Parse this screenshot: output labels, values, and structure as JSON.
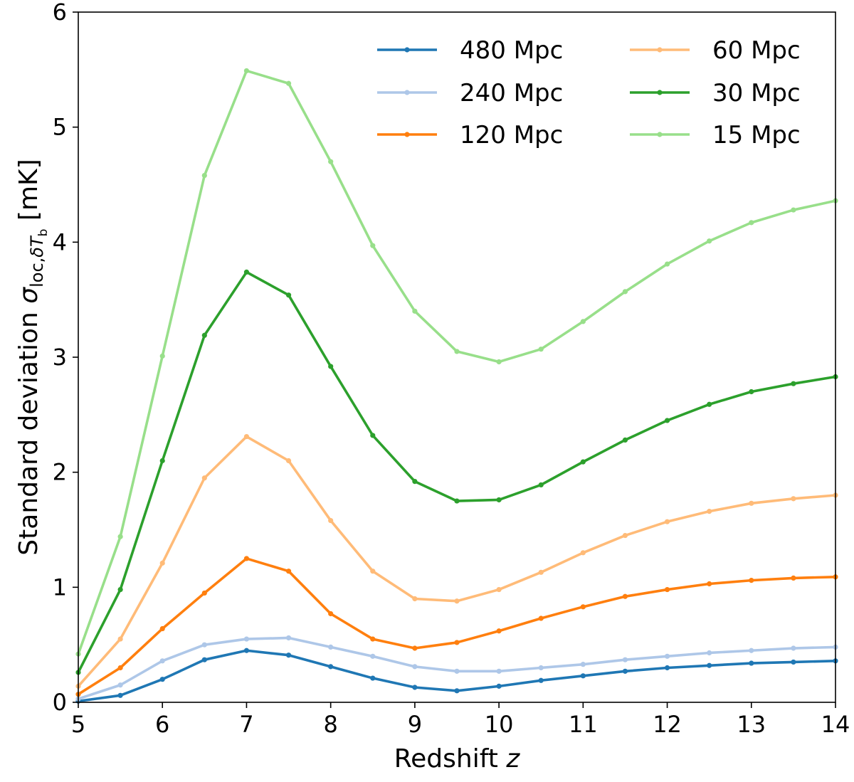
{
  "chart_data": {
    "type": "line",
    "title": "",
    "xlabel": "Redshift z",
    "ylabel": "Standard deviation σ_{loc,δT_b} [mK]",
    "ylabel_parts": {
      "prefix": "Standard deviation ",
      "sigma": "σ",
      "subscript_loc": "loc,",
      "subscript_delta": "δ",
      "subscript_T": "T",
      "subscript_b": "b",
      "suffix": " [mK]"
    },
    "xlabel_parts": {
      "prefix": "Redshift ",
      "var": "z"
    },
    "xlim": [
      5,
      14
    ],
    "ylim": [
      0,
      6
    ],
    "xticks": [
      "5",
      "6",
      "7",
      "8",
      "9",
      "10",
      "11",
      "12",
      "13",
      "14"
    ],
    "yticks": [
      "0",
      "1",
      "2",
      "3",
      "4",
      "5",
      "6"
    ],
    "grid": false,
    "legend_position": "top-right",
    "x": [
      5,
      5.5,
      6,
      6.5,
      7,
      7.5,
      8,
      8.5,
      9,
      9.5,
      10,
      10.5,
      11,
      11.5,
      12,
      12.5,
      13,
      13.5,
      14
    ],
    "series": [
      {
        "name": "480 Mpc",
        "color": "#1f77b4",
        "values": [
          0.01,
          0.06,
          0.2,
          0.37,
          0.45,
          0.41,
          0.31,
          0.21,
          0.13,
          0.1,
          0.14,
          0.19,
          0.23,
          0.27,
          0.3,
          0.32,
          0.34,
          0.35,
          0.36
        ]
      },
      {
        "name": "240 Mpc",
        "color": "#aec7e8",
        "values": [
          0.03,
          0.15,
          0.36,
          0.5,
          0.55,
          0.56,
          0.48,
          0.4,
          0.31,
          0.27,
          0.27,
          0.3,
          0.33,
          0.37,
          0.4,
          0.43,
          0.45,
          0.47,
          0.48
        ]
      },
      {
        "name": "120 Mpc",
        "color": "#ff7f0e",
        "values": [
          0.07,
          0.3,
          0.64,
          0.95,
          1.25,
          1.14,
          0.77,
          0.55,
          0.47,
          0.52,
          0.62,
          0.73,
          0.83,
          0.92,
          0.98,
          1.03,
          1.06,
          1.08,
          1.09
        ]
      },
      {
        "name": "60 Mpc",
        "color": "#ffbb78",
        "values": [
          0.14,
          0.55,
          1.21,
          1.95,
          2.31,
          2.1,
          1.58,
          1.14,
          0.9,
          0.88,
          0.98,
          1.13,
          1.3,
          1.45,
          1.57,
          1.66,
          1.73,
          1.77,
          1.8
        ]
      },
      {
        "name": "30 Mpc",
        "color": "#2ca02c",
        "values": [
          0.26,
          0.98,
          2.1,
          3.19,
          3.74,
          3.54,
          2.92,
          2.32,
          1.92,
          1.75,
          1.76,
          1.89,
          2.09,
          2.28,
          2.45,
          2.59,
          2.7,
          2.77,
          2.83
        ]
      },
      {
        "name": "15 Mpc",
        "color": "#98df8a",
        "values": [
          0.42,
          1.44,
          3.01,
          4.58,
          5.49,
          5.38,
          4.7,
          3.97,
          3.4,
          3.05,
          2.96,
          3.07,
          3.31,
          3.57,
          3.81,
          4.01,
          4.17,
          4.28,
          4.36
        ]
      }
    ]
  }
}
